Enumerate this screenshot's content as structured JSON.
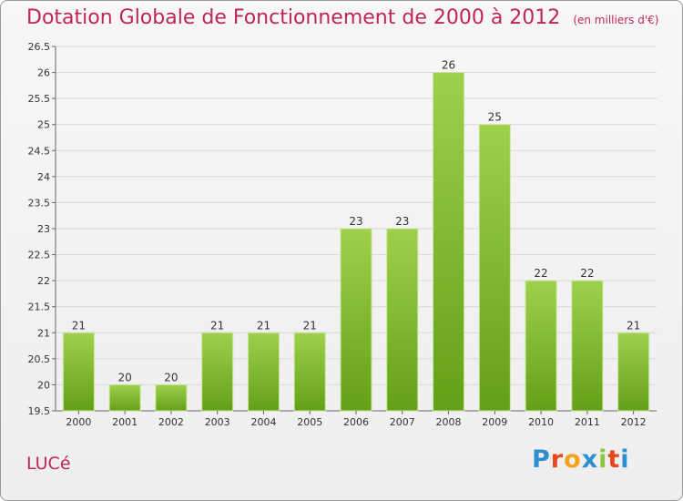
{
  "header": {
    "title": "Dotation Globale de Fonctionnement de 2000 à 2012",
    "unit": "(en milliers d'€)"
  },
  "footer": {
    "commune": "LUCé",
    "logo": [
      "P",
      "r",
      "o",
      "x",
      "i",
      "t",
      "i"
    ],
    "logo_colors": [
      "#2f8fce",
      "#e8461b",
      "#f4a21a",
      "#2f8fce",
      "#8cc63f",
      "#e8461b",
      "#2f8fce"
    ]
  },
  "chart_data": {
    "type": "bar",
    "categories": [
      "2000",
      "2001",
      "2002",
      "2003",
      "2004",
      "2005",
      "2006",
      "2007",
      "2008",
      "2009",
      "2010",
      "2011",
      "2012"
    ],
    "values": [
      21,
      20,
      20,
      21,
      21,
      21,
      23,
      23,
      26,
      25,
      22,
      22,
      21
    ],
    "title": "Dotation Globale de Fonctionnement de 2000 à 2012",
    "ylim": [
      19.5,
      26.5
    ],
    "yticks": [
      "19.5",
      "20",
      "20.5",
      "21",
      "21.5",
      "22",
      "22.5",
      "23",
      "23.5",
      "24",
      "24.5",
      "25",
      "25.5",
      "26",
      "26.5"
    ],
    "grid": true,
    "colors": {
      "bar_light": "#9fd04c",
      "bar_dark": "#64a017",
      "text": "#333333",
      "axis": "#666666"
    }
  }
}
